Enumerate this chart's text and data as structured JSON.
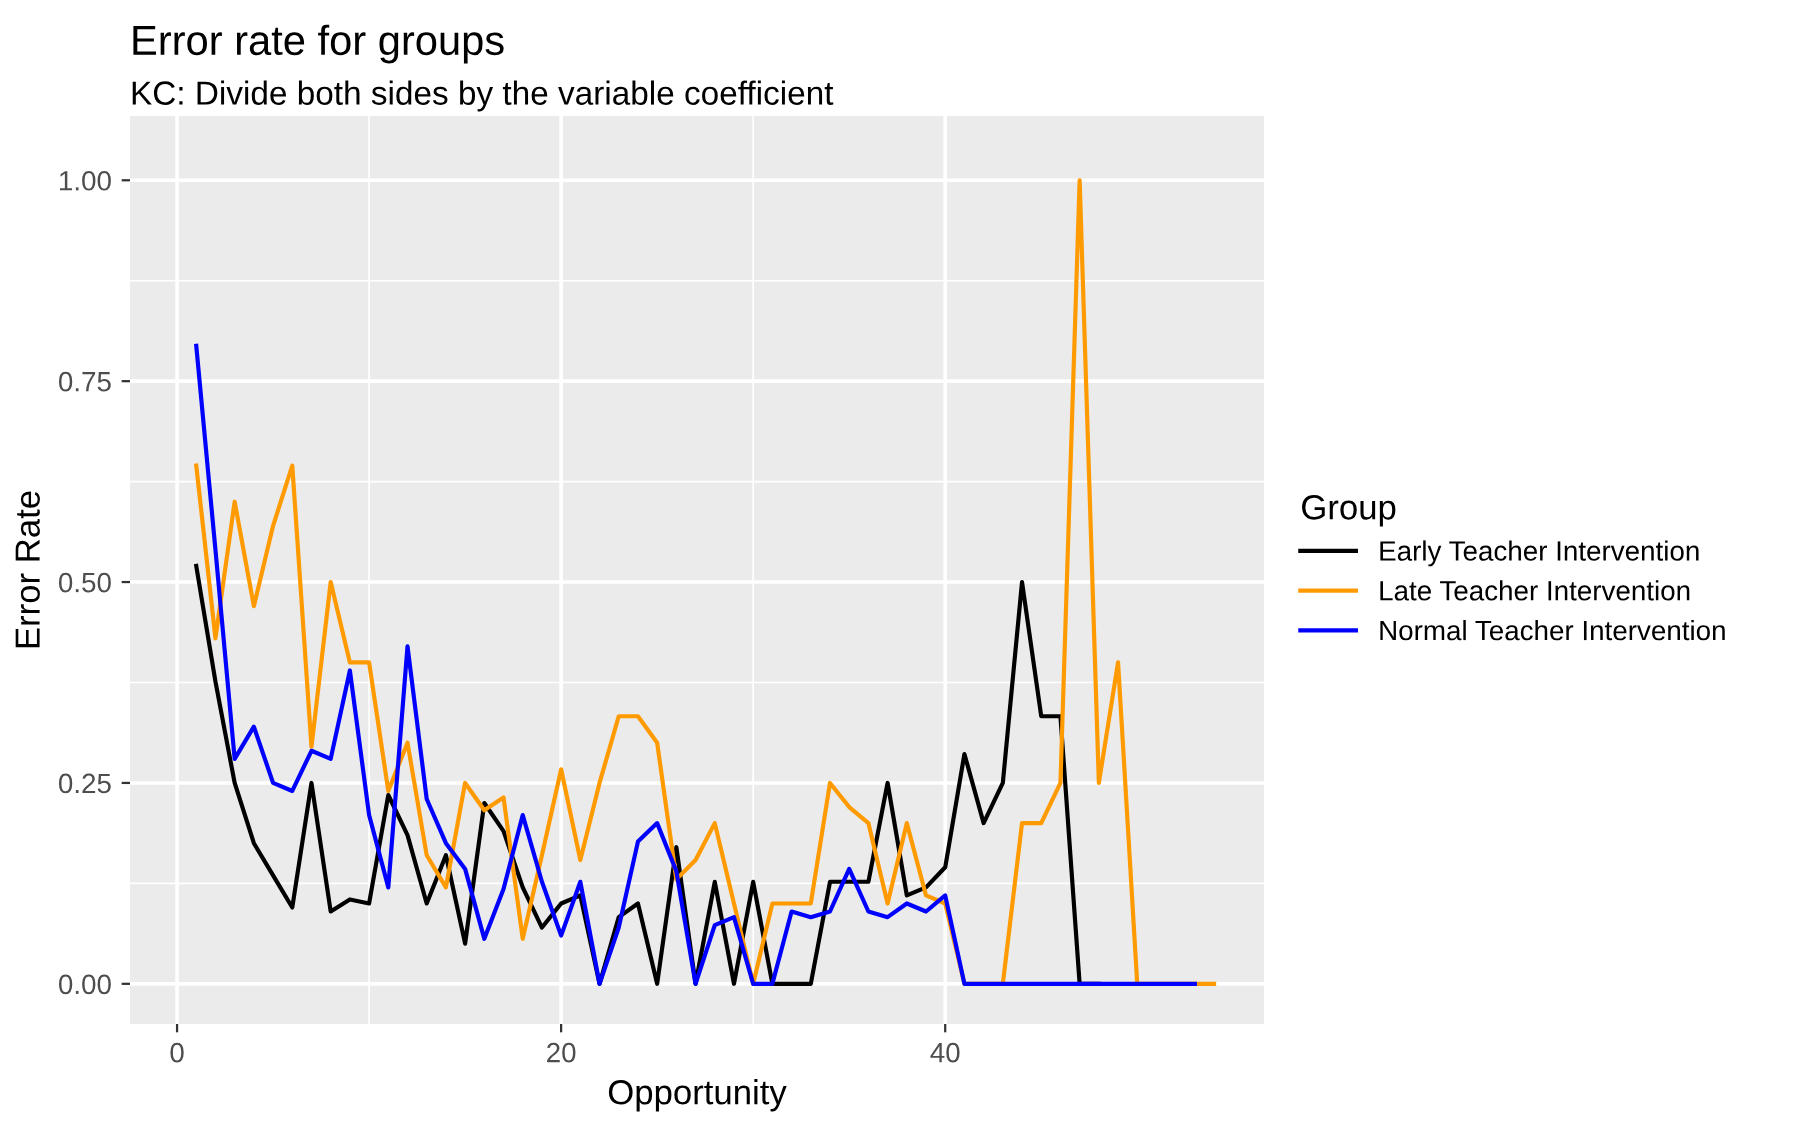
{
  "chart_data": {
    "type": "line",
    "title": "Error rate for groups",
    "subtitle": "KC: Divide both sides by the variable coefficient",
    "xlabel": "Opportunity",
    "ylabel": "Error Rate",
    "legend_title": "Group",
    "legend": "right",
    "grid": true,
    "marker": "none",
    "line_style": "solid",
    "xlim": [
      -2.45,
      56.6
    ],
    "xticks": [
      0,
      20,
      40
    ],
    "ylim": [
      -0.05,
      1.08
    ],
    "yticks": [
      {
        "value": 0,
        "label": "0.00"
      },
      {
        "value": 0.25,
        "label": "0.25"
      },
      {
        "value": 0.5,
        "label": "0.50"
      },
      {
        "value": 0.75,
        "label": "0.75"
      },
      {
        "value": 1,
        "label": "1.00"
      }
    ],
    "series": [
      {
        "name": "Early Teacher Intervention",
        "color": "#000000",
        "x": [
          1,
          2,
          3,
          4,
          5,
          6,
          7,
          8,
          9,
          10,
          11,
          12,
          13,
          14,
          15,
          16,
          17,
          18,
          19,
          20,
          21,
          22,
          23,
          24,
          25,
          26,
          27,
          28,
          29,
          30,
          31,
          32,
          33,
          34,
          35,
          36,
          37,
          38,
          39,
          40,
          41,
          42,
          43,
          44,
          45,
          46,
          47,
          48
        ],
        "values": [
          0.52,
          0.376,
          0.25,
          0.175,
          0.135,
          0.095,
          0.25,
          0.09,
          0.105,
          0.1,
          0.235,
          0.185,
          0.1,
          0.16,
          0.05,
          0.225,
          0.19,
          0.12,
          0.07,
          0.1,
          0.11,
          0,
          0.083,
          0.1,
          0,
          0.17,
          0,
          0.127,
          0,
          0.127,
          0,
          0,
          0,
          0.127,
          0.127,
          0.127,
          0.25,
          0.11,
          0.12,
          0.145,
          0.286,
          0.2,
          0.25,
          0.5,
          0.333,
          0.333,
          0,
          0
        ]
      },
      {
        "name": "Late Teacher Intervention",
        "color": "#ff9a00",
        "x": [
          1,
          2,
          3,
          4,
          5,
          6,
          7,
          8,
          9,
          10,
          11,
          12,
          13,
          14,
          15,
          16,
          17,
          18,
          19,
          20,
          21,
          22,
          23,
          24,
          25,
          26,
          27,
          28,
          29,
          30,
          31,
          32,
          33,
          34,
          35,
          36,
          37,
          38,
          39,
          40,
          41,
          42,
          43,
          44,
          45,
          46,
          47,
          48,
          49,
          50,
          51,
          52,
          53,
          54
        ],
        "values": [
          0.645,
          0.43,
          0.6,
          0.47,
          0.57,
          0.645,
          0.295,
          0.5,
          0.4,
          0.4,
          0.24,
          0.3,
          0.16,
          0.12,
          0.25,
          0.216,
          0.232,
          0.056,
          0.16,
          0.267,
          0.154,
          0.25,
          0.333,
          0.333,
          0.3,
          0.13,
          0.154,
          0.2,
          0.1,
          0,
          0.1,
          0.1,
          0.1,
          0.25,
          0.22,
          0.2,
          0.1,
          0.2,
          0.11,
          0.1,
          0,
          0,
          0,
          0.2,
          0.2,
          0.25,
          1.0,
          0.25,
          0.4,
          0,
          0,
          0,
          0,
          0
        ]
      },
      {
        "name": "Normal Teacher Intervention",
        "color": "#0000ff",
        "x": [
          1,
          2,
          3,
          4,
          5,
          6,
          7,
          8,
          9,
          10,
          11,
          12,
          13,
          14,
          15,
          16,
          17,
          18,
          19,
          20,
          21,
          22,
          23,
          24,
          25,
          26,
          27,
          28,
          29,
          30,
          31,
          32,
          33,
          34,
          35,
          36,
          37,
          38,
          39,
          40,
          41,
          42,
          43,
          44,
          45,
          46,
          47,
          48,
          49,
          50,
          51,
          52,
          53
        ],
        "values": [
          0.794,
          0.54,
          0.28,
          0.32,
          0.25,
          0.24,
          0.29,
          0.28,
          0.39,
          0.21,
          0.12,
          0.42,
          0.23,
          0.175,
          0.143,
          0.056,
          0.118,
          0.21,
          0.127,
          0.06,
          0.127,
          0,
          0.07,
          0.177,
          0.2,
          0.14,
          0,
          0.073,
          0.083,
          0,
          0,
          0.09,
          0.083,
          0.09,
          0.143,
          0.09,
          0.083,
          0.1,
          0.09,
          0.11,
          0,
          0,
          0,
          0,
          0,
          0,
          0,
          0,
          0,
          0,
          0,
          0,
          0
        ]
      }
    ]
  }
}
